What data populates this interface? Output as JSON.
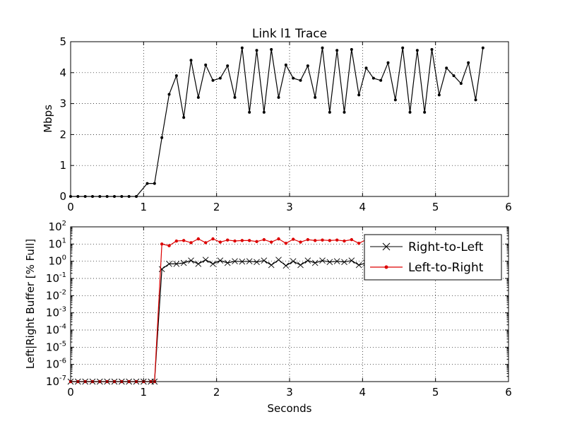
{
  "chart_data": [
    {
      "type": "line",
      "title": "Link l1 Trace",
      "xlabel": "",
      "ylabel": "Mbps",
      "xlim": [
        0,
        6
      ],
      "ylim": [
        0,
        5
      ],
      "xticks": [
        "0",
        "1",
        "2",
        "3",
        "4",
        "5",
        "6"
      ],
      "yticks": [
        "0",
        "1",
        "2",
        "3",
        "4",
        "5"
      ],
      "grid": true,
      "series": [
        {
          "color": "#000000",
          "marker": "dot",
          "x": [
            0,
            0.1,
            0.2,
            0.3,
            0.4,
            0.5,
            0.6,
            0.7,
            0.8,
            0.9,
            1.05,
            1.15,
            1.25,
            1.35,
            1.45,
            1.55,
            1.65,
            1.75,
            1.85,
            1.95,
            2.05,
            2.15,
            2.25,
            2.35,
            2.45,
            2.55,
            2.65,
            2.75,
            2.85,
            2.95,
            3.05,
            3.15,
            3.25,
            3.35,
            3.45,
            3.55,
            3.65,
            3.75,
            3.85,
            3.95,
            4.05,
            4.15,
            4.25,
            4.35,
            4.45,
            4.55,
            4.65,
            4.75,
            4.85,
            4.95,
            5.05,
            5.15,
            5.25,
            5.35,
            5.45,
            5.55,
            5.65
          ],
          "y": [
            0,
            0,
            0,
            0,
            0,
            0,
            0,
            0,
            0,
            0,
            0.42,
            0.42,
            1.9,
            3.3,
            3.9,
            2.55,
            4.4,
            3.2,
            4.25,
            3.75,
            3.82,
            4.22,
            3.2,
            4.8,
            2.72,
            4.72,
            2.72,
            4.75,
            3.2,
            4.25,
            3.82,
            3.75,
            4.22,
            3.2,
            4.8,
            2.72,
            4.72,
            2.72,
            4.75,
            3.28,
            4.15,
            3.82,
            3.75,
            4.32,
            3.12,
            4.8,
            2.72,
            4.72,
            2.72,
            4.75,
            3.28,
            4.15,
            3.9,
            3.65,
            4.32,
            3.12,
            4.8
          ]
        }
      ]
    },
    {
      "type": "line",
      "title": "",
      "xlabel": "Seconds",
      "ylabel": "Left|Right Buffer [% Full]",
      "xlim": [
        0,
        6
      ],
      "ylim": [
        1e-07,
        100
      ],
      "yscale": "log",
      "xticks": [
        "0",
        "1",
        "2",
        "3",
        "4",
        "5",
        "6"
      ],
      "yticks": [
        {
          "base": "10",
          "exp": "2"
        },
        {
          "base": "10",
          "exp": "1"
        },
        {
          "base": "10",
          "exp": "0"
        },
        {
          "base": "10",
          "exp": "-1"
        },
        {
          "base": "10",
          "exp": "-2"
        },
        {
          "base": "10",
          "exp": "-3"
        },
        {
          "base": "10",
          "exp": "-4"
        },
        {
          "base": "10",
          "exp": "-5"
        },
        {
          "base": "10",
          "exp": "-6"
        },
        {
          "base": "10",
          "exp": "-7"
        }
      ],
      "grid": true,
      "legend": "top-right",
      "series": [
        {
          "name": "Right-to-Left",
          "color": "#000000",
          "marker": "x",
          "x": [
            0,
            0.1,
            0.2,
            0.3,
            0.4,
            0.5,
            0.6,
            0.7,
            0.8,
            0.9,
            1.0,
            1.1,
            1.15,
            1.25,
            1.35,
            1.45,
            1.55,
            1.65,
            1.75,
            1.85,
            1.95,
            2.05,
            2.15,
            2.25,
            2.35,
            2.45,
            2.55,
            2.65,
            2.75,
            2.85,
            2.95,
            3.05,
            3.15,
            3.25,
            3.35,
            3.45,
            3.55,
            3.65,
            3.75,
            3.85,
            3.95,
            4.05
          ],
          "y": [
            1e-07,
            1e-07,
            1e-07,
            1e-07,
            1e-07,
            1e-07,
            1e-07,
            1e-07,
            1e-07,
            1e-07,
            1e-07,
            1e-07,
            1e-07,
            0.35,
            0.7,
            0.7,
            0.8,
            1.1,
            0.7,
            1.2,
            0.7,
            1.1,
            0.8,
            1.0,
            0.95,
            1.0,
            0.9,
            1.1,
            0.6,
            1.2,
            0.55,
            1.0,
            0.6,
            1.1,
            0.8,
            1.1,
            0.9,
            1.0,
            0.9,
            1.1,
            0.6,
            0.8
          ]
        },
        {
          "name": "Left-to-Right",
          "color": "#dd0000",
          "marker": "dot",
          "x": [
            0,
            0.1,
            0.2,
            0.3,
            0.4,
            0.5,
            0.6,
            0.7,
            0.8,
            0.9,
            1.0,
            1.1,
            1.15,
            1.25,
            1.35,
            1.45,
            1.55,
            1.65,
            1.75,
            1.85,
            1.95,
            2.05,
            2.15,
            2.25,
            2.35,
            2.45,
            2.55,
            2.65,
            2.75,
            2.85,
            2.95,
            3.05,
            3.15,
            3.25,
            3.35,
            3.45,
            3.55,
            3.65,
            3.75,
            3.85,
            3.95,
            4.05
          ],
          "y": [
            1e-07,
            1e-07,
            1e-07,
            1e-07,
            1e-07,
            1e-07,
            1e-07,
            1e-07,
            1e-07,
            1e-07,
            1e-07,
            1e-07,
            1e-07,
            10,
            8,
            15,
            16,
            12,
            20,
            12,
            20,
            13,
            17,
            15,
            16,
            16,
            14,
            18,
            13,
            20,
            11,
            19,
            13,
            18,
            16,
            17,
            16,
            17,
            15,
            18,
            11,
            18
          ]
        }
      ]
    }
  ]
}
